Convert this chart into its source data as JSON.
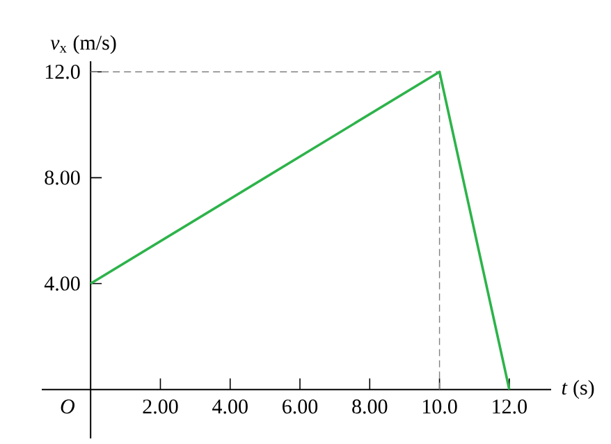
{
  "chart_data": {
    "type": "line",
    "xlabel": "*t* (s)",
    "ylabel": "*v*$_{x}$ (m/s)",
    "x": [
      0,
      10,
      12
    ],
    "series": [
      {
        "color": "#2db34a",
        "values": [
          4,
          12,
          0
        ]
      }
    ],
    "xlim": [
      -1.4,
      13.2
    ],
    "ylim": [
      -1.85,
      12.4
    ],
    "xticks": [
      {
        "value": 2,
        "label": "2.00"
      },
      {
        "value": 4,
        "label": "4.00"
      },
      {
        "value": 6,
        "label": "6.00"
      },
      {
        "value": 8,
        "label": "8.00"
      },
      {
        "value": 10,
        "label": "10.0"
      },
      {
        "value": 12,
        "label": "12.0"
      }
    ],
    "yticks": [
      {
        "value": 4,
        "label": "4.00"
      },
      {
        "value": 8,
        "label": "8.00"
      },
      {
        "value": 12,
        "label": "12.0"
      }
    ],
    "ref_lines": [
      {
        "axis": "y",
        "value": 12,
        "color": "#808080",
        "line_style": "dashed"
      },
      {
        "axis": "x",
        "value": 10,
        "color": "#808080",
        "line_style": "dashed"
      }
    ],
    "annotations": [
      "O"
    ],
    "grid": false,
    "marker": "none",
    "line_style": "solid"
  }
}
